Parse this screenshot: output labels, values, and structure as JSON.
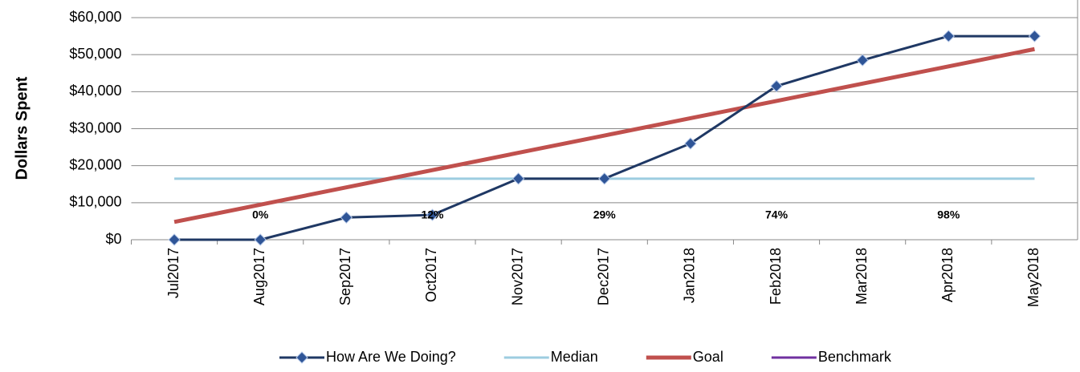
{
  "chart_data": {
    "type": "line",
    "y_label": "Dollars Spent",
    "categories": [
      "Jul2017",
      "Aug2017",
      "Sep2017",
      "Oct2017",
      "Nov2017",
      "Dec2017",
      "Jan2018",
      "Feb2018",
      "Mar2018",
      "Apr2018",
      "May2018"
    ],
    "series": [
      {
        "name": "How Are We Doing?",
        "color": "#1f3864",
        "marker": "diamond",
        "values": [
          0,
          0,
          6000,
          6700,
          16500,
          16500,
          26000,
          41500,
          48500,
          55000,
          55000
        ]
      },
      {
        "name": "Median",
        "color": "#9dcde0",
        "values": [
          16500,
          16500,
          16500,
          16500,
          16500,
          16500,
          16500,
          16500,
          16500,
          16500,
          16500
        ]
      },
      {
        "name": "Goal",
        "color": "#c0504d",
        "values": [
          4800,
          9470,
          14140,
          18810,
          23480,
          28150,
          32820,
          37490,
          42160,
          46830,
          51500
        ]
      },
      {
        "name": "Benchmark",
        "color": "#7030a0",
        "values": [
          null,
          null,
          null,
          null,
          null,
          null,
          null,
          null,
          null,
          null,
          null
        ]
      }
    ],
    "percent_labels": [
      null,
      "0%",
      null,
      "12%",
      null,
      "29%",
      null,
      "74%",
      null,
      "98%",
      null
    ],
    "ylim": [
      0,
      60000
    ],
    "yticks": [
      {
        "value": 0,
        "label": "$0"
      },
      {
        "value": 10000,
        "label": "$10,000"
      },
      {
        "value": 20000,
        "label": "$20,000"
      },
      {
        "value": 30000,
        "label": "$30,000"
      },
      {
        "value": 40000,
        "label": "$40,000"
      },
      {
        "value": 50000,
        "label": "$50,000"
      },
      {
        "value": 60000,
        "label": "$60,000"
      }
    ],
    "grid": true
  }
}
